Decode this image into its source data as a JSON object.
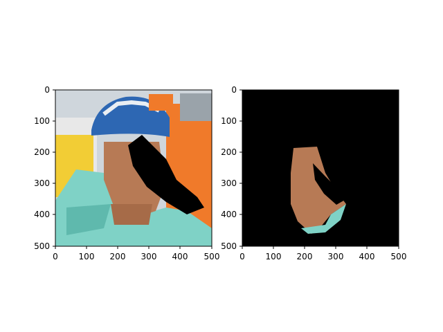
{
  "figure": {
    "panels": [
      {
        "id": "left",
        "description_visible": "photo of cyclist with occlusion mask",
        "xticks": [
          "0",
          "100",
          "200",
          "300",
          "400",
          "500"
        ],
        "yticks": [
          "0",
          "100",
          "200",
          "300",
          "400",
          "500"
        ]
      },
      {
        "id": "right",
        "description_visible": "segmented face region on black background",
        "xticks": [
          "0",
          "100",
          "200",
          "300",
          "400",
          "500"
        ],
        "yticks": [
          "0",
          "100",
          "200",
          "300",
          "400",
          "500"
        ]
      }
    ]
  },
  "colors": {
    "jersey": "#7fd2c6",
    "helmet_blue": "#2d67b3",
    "helmet_white": "#e9eef3",
    "skin": "#b77a55",
    "orange": "#f07a2a",
    "yellow": "#f2cd35",
    "background": "#000000"
  }
}
